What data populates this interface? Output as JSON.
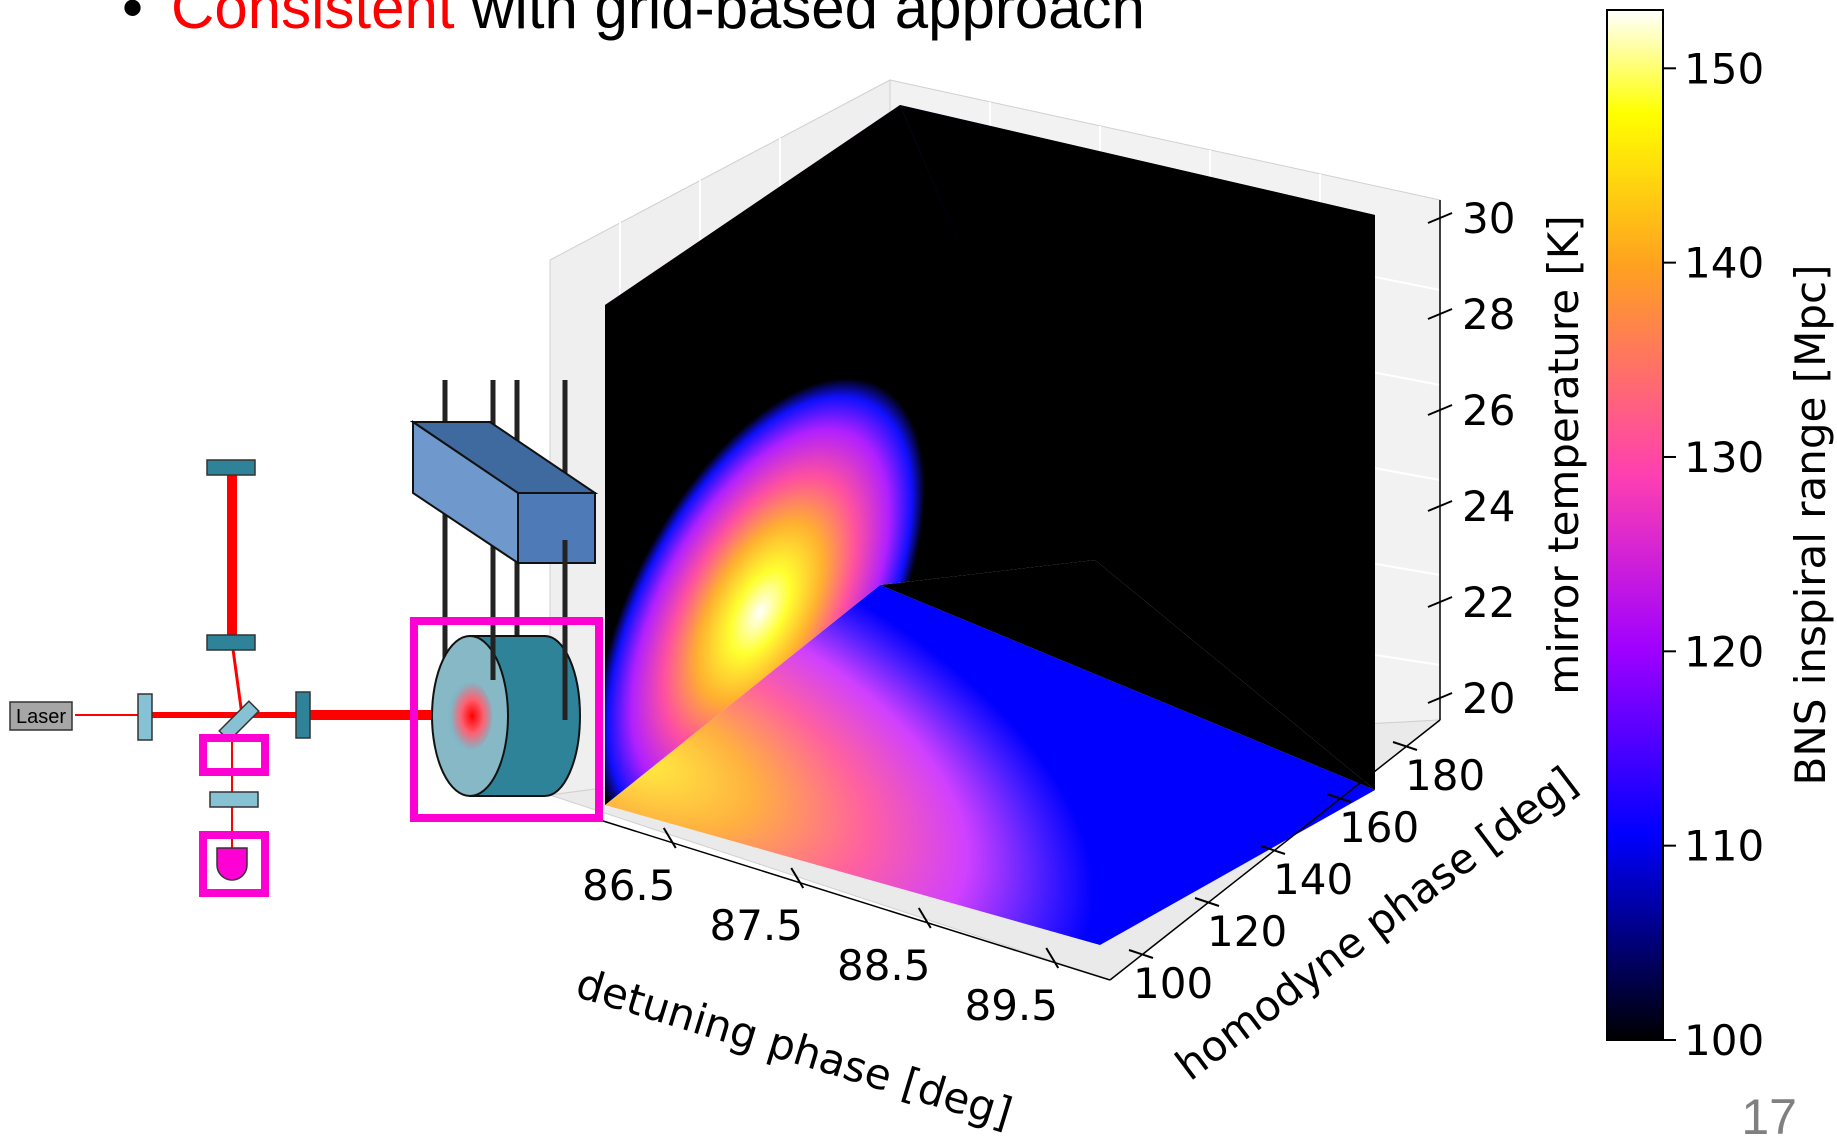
{
  "slide": {
    "bullet_symbol": "•",
    "bullet_highlight": "Consistent",
    "bullet_rest": " with grid-based approach",
    "page_number": "17"
  },
  "diagram": {
    "laser_label": "Laser"
  },
  "chart_data": {
    "type": "3d-heatmap-cube",
    "title": "",
    "xlabel": "detuning phase [deg]",
    "ylabel": "homodyne phase [deg]",
    "zlabel": "mirror temperature [K]",
    "x_ticks": [
      "86.5",
      "87.5",
      "88.5",
      "89.5"
    ],
    "y_ticks": [
      "100",
      "120",
      "140",
      "160",
      "180"
    ],
    "z_ticks": [
      "20",
      "22",
      "24",
      "26",
      "28",
      "30"
    ],
    "xlim": [
      86.0,
      90.0
    ],
    "ylim": [
      90,
      190
    ],
    "zlim": [
      20,
      30
    ],
    "grid": true,
    "colorbar": {
      "label": "BNS inspiral range [Mpc]",
      "ticks": [
        "100",
        "110",
        "120",
        "130",
        "140",
        "150"
      ],
      "range": [
        100,
        153
      ],
      "colormap": "gnuplot2",
      "colors": [
        "#000000",
        "#0000ff",
        "#a000ff",
        "#ff40b0",
        "#ffa020",
        "#ffff00",
        "#ffffff"
      ]
    },
    "peak": {
      "detuning_phase": 86.8,
      "homodyne_phase": 180,
      "mirror_temperature": 22,
      "value": 153
    }
  }
}
